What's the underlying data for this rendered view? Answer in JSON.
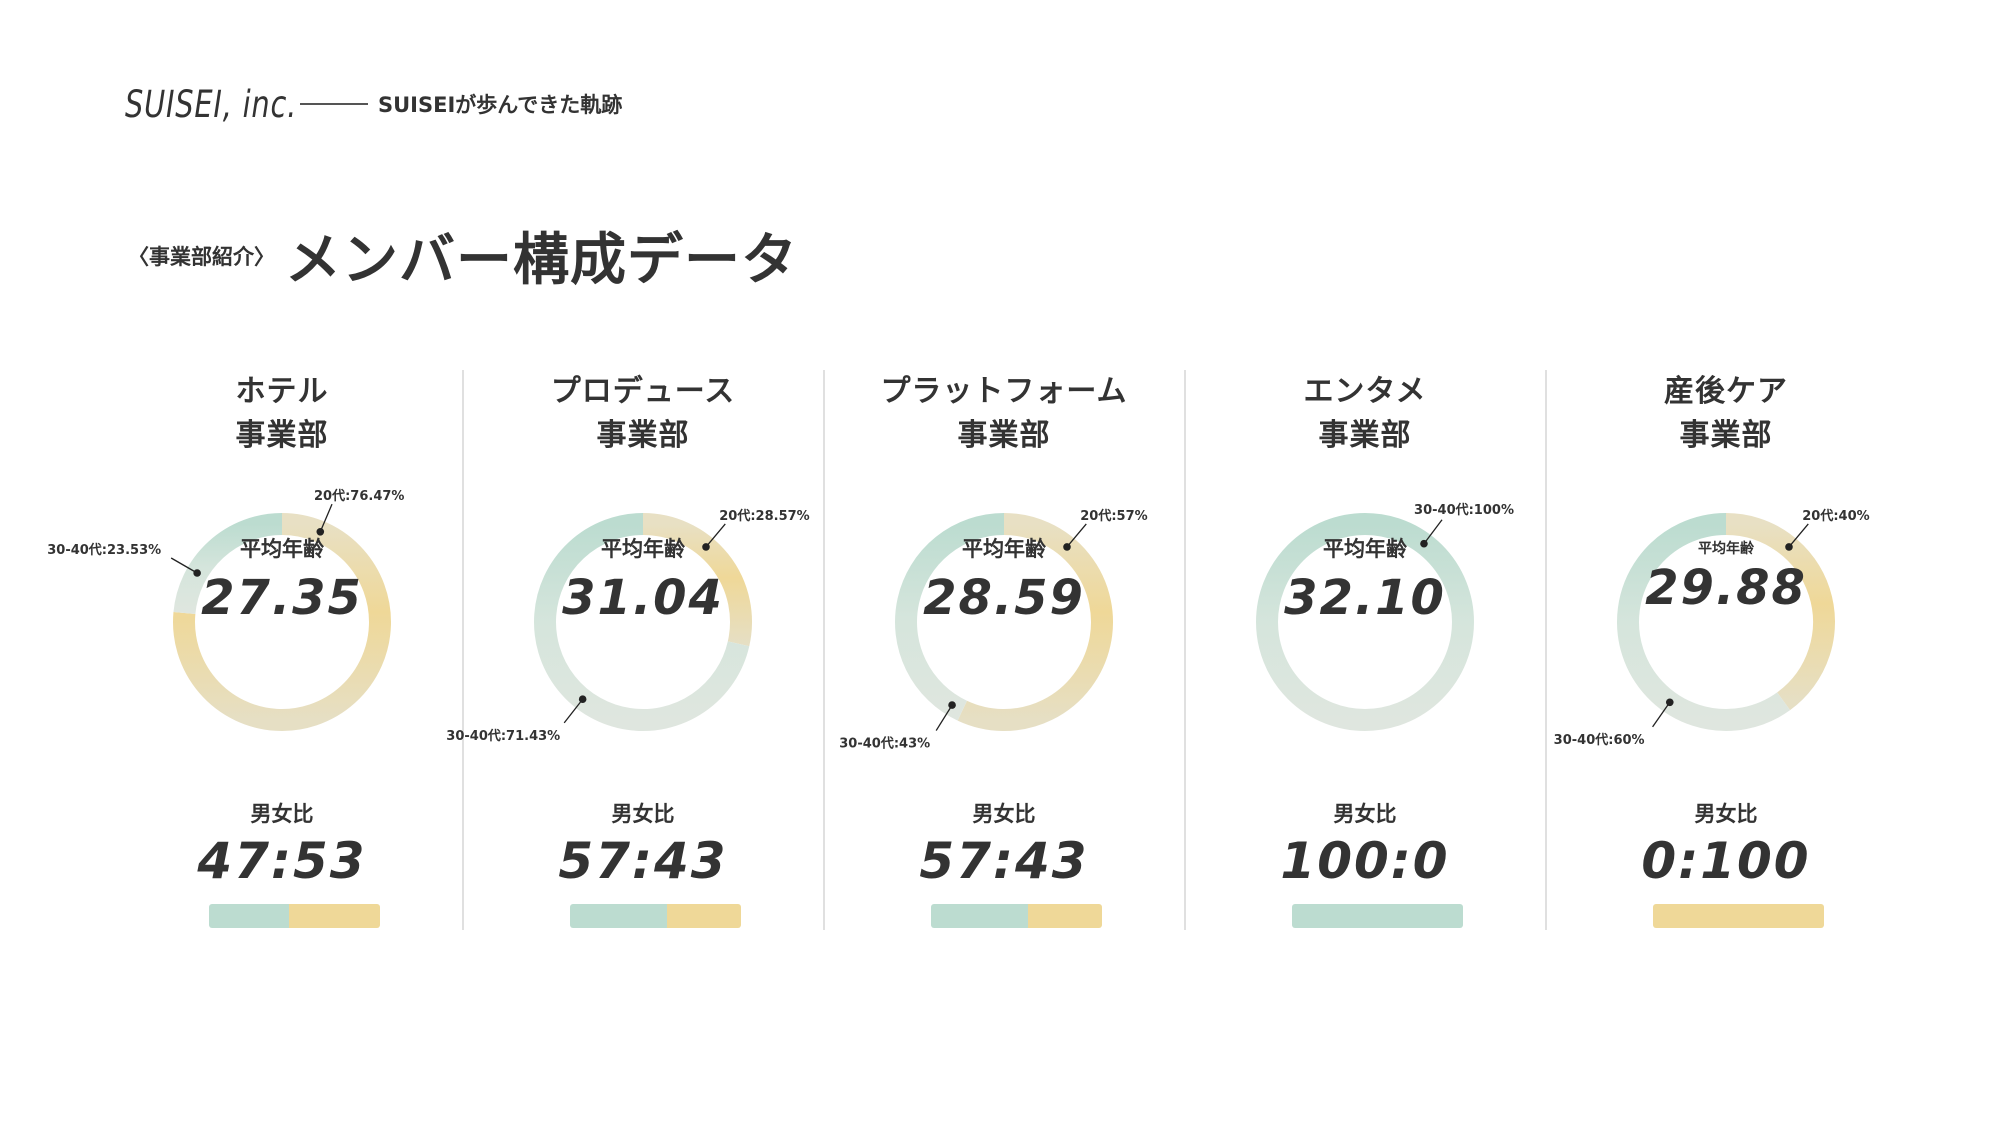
{
  "header": {
    "logo": "SUISEI, inc.",
    "subtitle": "SUISEIが歩んできた軌跡"
  },
  "title": {
    "prefix": "〈事業部紹介〉",
    "main": "メンバー構成データ"
  },
  "labels": {
    "avg_age": "平均年齢",
    "gender_ratio": "男女比"
  },
  "colors": {
    "age_20s": "#efd898",
    "age_30_40s": "#bcdcd0",
    "male": "#bcdcd0",
    "female": "#efd898"
  },
  "chart_data": [
    {
      "type": "pie",
      "title": "ホテル\n事業部",
      "series": [
        {
          "name": "20代",
          "value": 76.47
        },
        {
          "name": "30-40代",
          "value": 23.53
        }
      ],
      "callouts": [
        "20代:76.47%",
        "30-40代:23.53%"
      ],
      "avg_age": "27.35",
      "gender_ratio": {
        "text": "47:53",
        "male": 47,
        "female": 53
      }
    },
    {
      "type": "pie",
      "title": "プロデュース\n事業部",
      "series": [
        {
          "name": "20代",
          "value": 28.57
        },
        {
          "name": "30-40代",
          "value": 71.43
        }
      ],
      "callouts": [
        "20代:28.57%",
        "30-40代:71.43%"
      ],
      "avg_age": "31.04",
      "gender_ratio": {
        "text": "57:43",
        "male": 57,
        "female": 43
      }
    },
    {
      "type": "pie",
      "title": "プラットフォーム\n事業部",
      "series": [
        {
          "name": "20代",
          "value": 57
        },
        {
          "name": "30-40代",
          "value": 43
        }
      ],
      "callouts": [
        "20代:57%",
        "30-40代:43%"
      ],
      "avg_age": "28.59",
      "gender_ratio": {
        "text": "57:43",
        "male": 57,
        "female": 43
      }
    },
    {
      "type": "pie",
      "title": "エンタメ\n事業部",
      "series": [
        {
          "name": "30-40代",
          "value": 100
        }
      ],
      "callouts": [
        "30-40代:100%"
      ],
      "avg_age": "32.10",
      "gender_ratio": {
        "text": "100:0",
        "male": 100,
        "female": 0
      }
    },
    {
      "type": "pie",
      "title": "産後ケア\n事業部",
      "series": [
        {
          "name": "20代",
          "value": 40
        },
        {
          "name": "30-40代",
          "value": 60
        }
      ],
      "callouts": [
        "20代:40%",
        "30-40代:60%"
      ],
      "avg_age": "29.88",
      "gender_ratio": {
        "text": "0:100",
        "male": 0,
        "female": 100
      }
    }
  ]
}
